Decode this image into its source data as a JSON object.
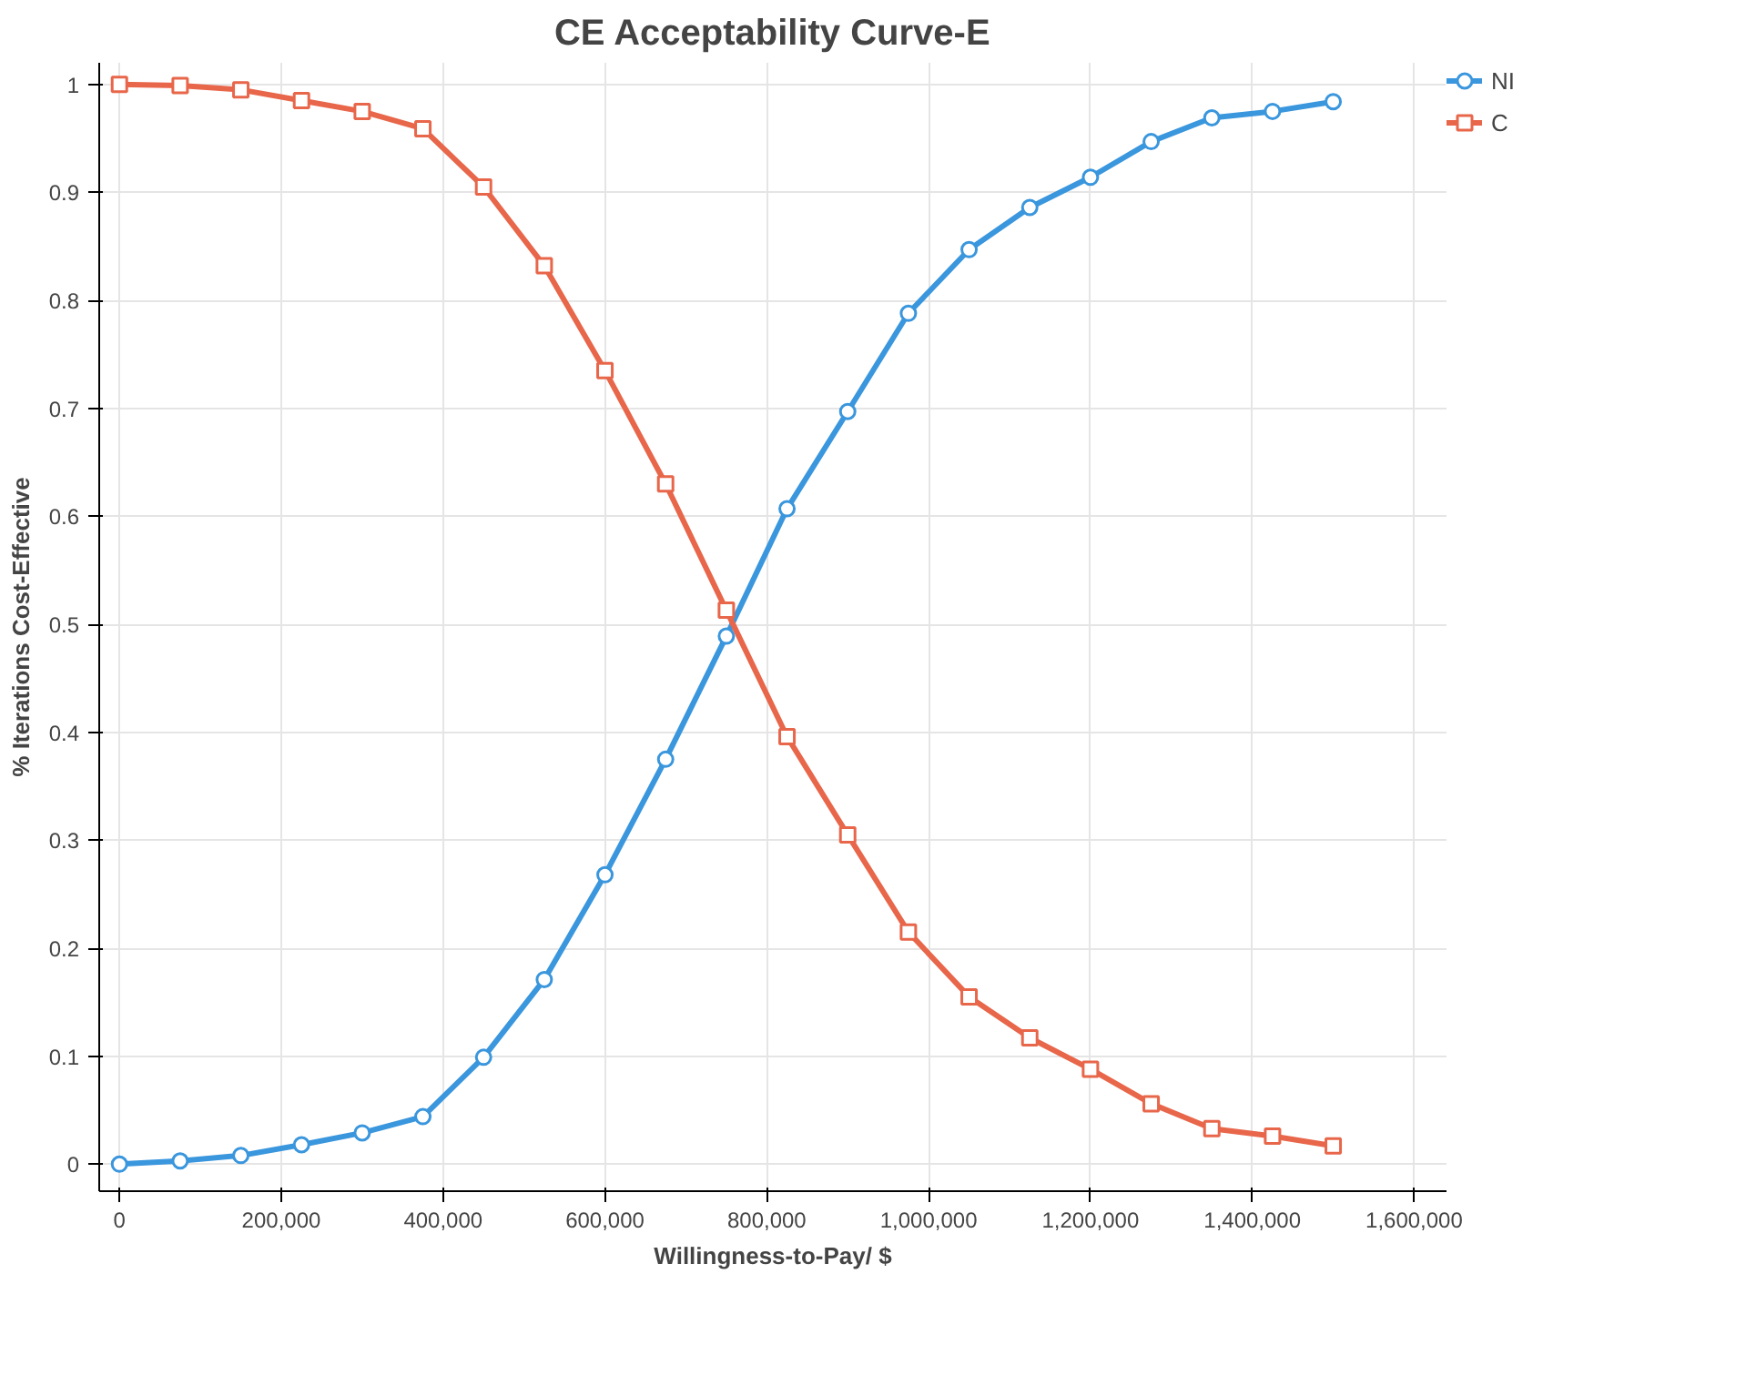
{
  "chart_data": {
    "type": "line",
    "title": "CE Acceptability Curve-E",
    "xlabel": "Willingness-to-Pay/ $",
    "ylabel": "% Iterations Cost-Effective",
    "x": [
      0,
      75000,
      150000,
      225000,
      300000,
      375000,
      450000,
      525000,
      600000,
      675000,
      750000,
      825000,
      900000,
      975000,
      1050000,
      1125000,
      1200000,
      1275000,
      1350000,
      1425000,
      1500000
    ],
    "series": [
      {
        "name": "NI",
        "color": "#3a96dd",
        "marker": "circle",
        "values": [
          0.0,
          0.003,
          0.008,
          0.018,
          0.029,
          0.044,
          0.099,
          0.171,
          0.268,
          0.375,
          0.489,
          0.607,
          0.697,
          0.788,
          0.847,
          0.886,
          0.914,
          0.947,
          0.969,
          0.975,
          0.984
        ]
      },
      {
        "name": "C",
        "color": "#e8664a",
        "marker": "square",
        "values": [
          1.0,
          0.999,
          0.995,
          0.985,
          0.975,
          0.959,
          0.905,
          0.832,
          0.735,
          0.63,
          0.513,
          0.396,
          0.305,
          0.215,
          0.155,
          0.117,
          0.088,
          0.056,
          0.033,
          0.026,
          0.017
        ]
      }
    ],
    "xlim": [
      -25000,
      1640000
    ],
    "ylim": [
      -0.025,
      1.02
    ],
    "xticks": [
      0,
      {
        "value": 200000,
        "label": "200,000"
      },
      {
        "value": 400000,
        "label": "400,000"
      },
      {
        "value": 600000,
        "label": "600,000"
      },
      {
        "value": 800000,
        "label": "800,000"
      },
      {
        "value": 1000000,
        "label": "1,000,000"
      },
      {
        "value": 1200000,
        "label": "1,200,000"
      },
      {
        "value": 1400000,
        "label": "1,400,000"
      },
      {
        "value": 1600000,
        "label": "1,600,000"
      }
    ],
    "yticks": [
      0,
      0.1,
      0.2,
      0.3,
      0.4,
      0.5,
      0.6,
      0.7,
      0.8,
      0.9,
      1
    ],
    "grid": true,
    "legend": "top right",
    "line_style": "solid"
  }
}
